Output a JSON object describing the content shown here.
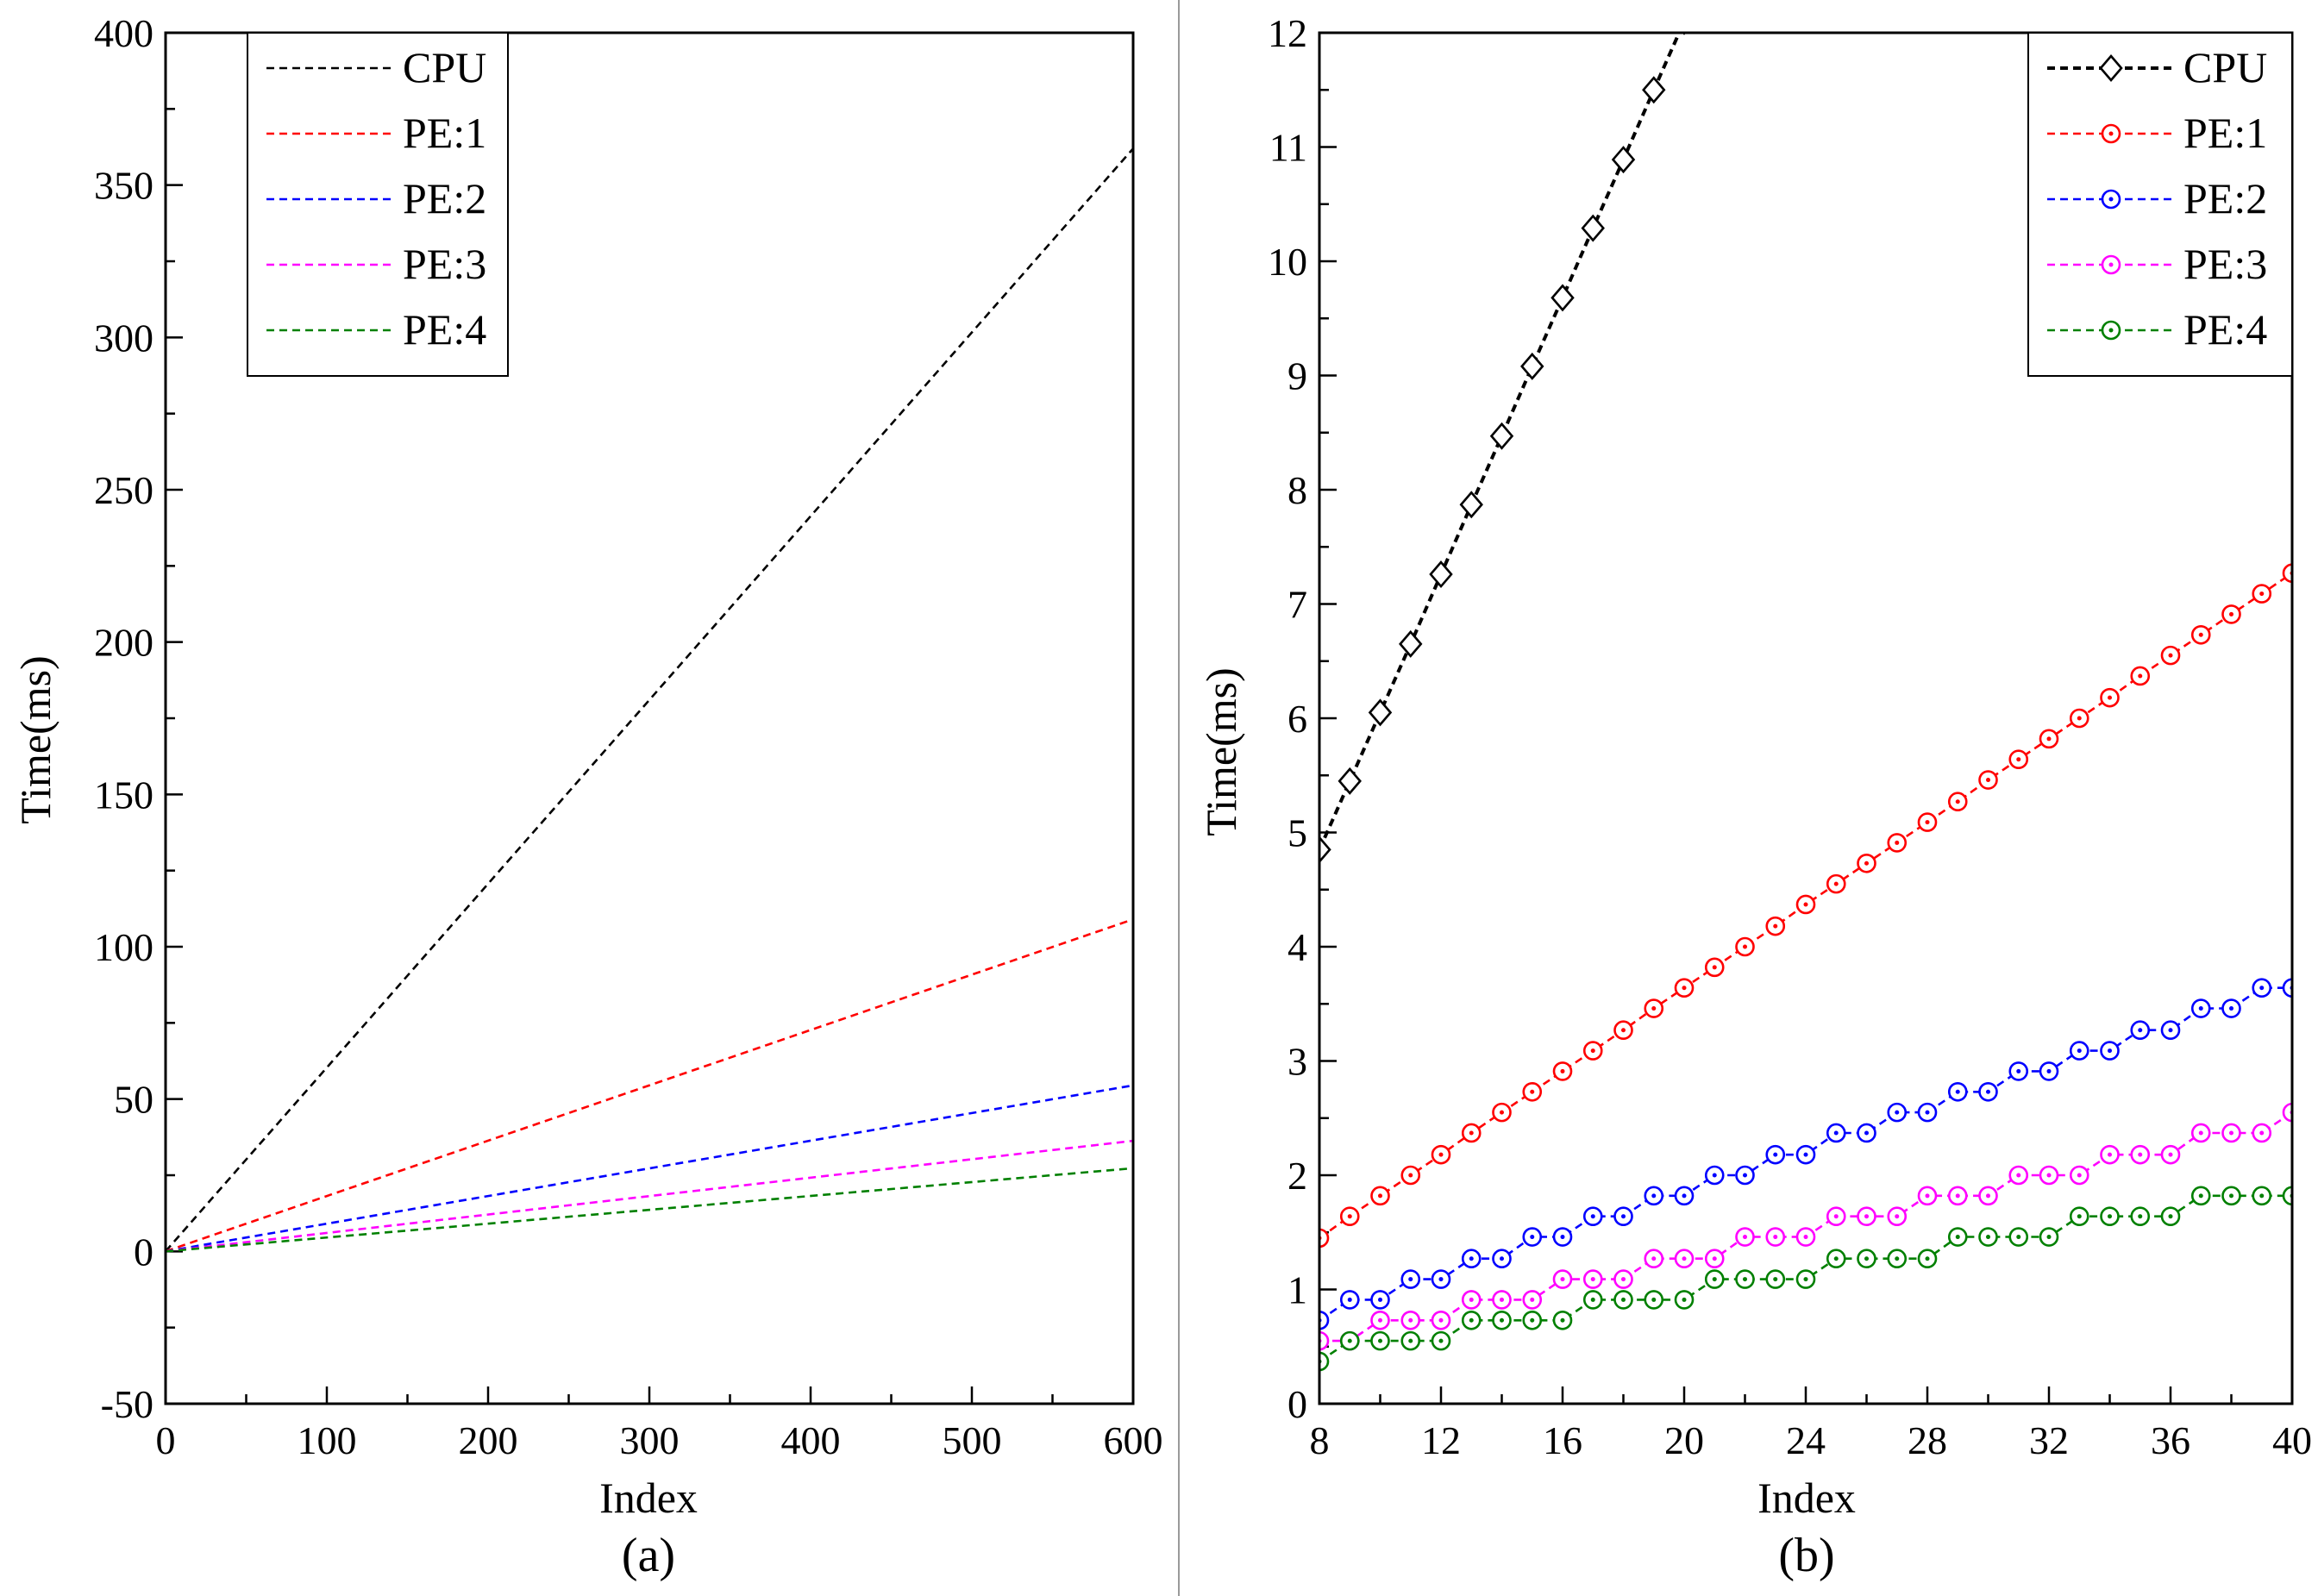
{
  "chart_data": [
    {
      "type": "line",
      "panel_label": "(a)",
      "xlabel": "Index",
      "ylabel": "Time(ms)",
      "xlim": [
        0,
        600
      ],
      "ylim": [
        -50,
        400
      ],
      "xticks": [
        0,
        100,
        200,
        300,
        400,
        500,
        600
      ],
      "yticks": [
        -50,
        0,
        50,
        100,
        150,
        200,
        250,
        300,
        350,
        400
      ],
      "legend": "top-left",
      "series": [
        {
          "name": "CPU",
          "color": "#000000",
          "x": [
            0,
            600
          ],
          "values": [
            0,
            362
          ]
        },
        {
          "name": "PE:1",
          "color": "#ff0000",
          "x": [
            0,
            600
          ],
          "values": [
            0,
            109
          ]
        },
        {
          "name": "PE:2",
          "color": "#0000ff",
          "x": [
            0,
            600
          ],
          "values": [
            0,
            54.5
          ]
        },
        {
          "name": "PE:3",
          "color": "#ff00ff",
          "x": [
            0,
            600
          ],
          "values": [
            0,
            36.3
          ]
        },
        {
          "name": "PE:4",
          "color": "#008000",
          "x": [
            0,
            600
          ],
          "values": [
            0,
            27.3
          ]
        }
      ]
    },
    {
      "type": "line",
      "panel_label": "(b)",
      "xlabel": "Index",
      "ylabel": "Time(ms)",
      "xlim": [
        8,
        40
      ],
      "ylim": [
        0,
        12
      ],
      "xticks": [
        8,
        12,
        16,
        20,
        24,
        28,
        32,
        36,
        40
      ],
      "yticks": [
        0,
        1,
        2,
        3,
        4,
        5,
        6,
        7,
        8,
        9,
        10,
        11,
        12
      ],
      "legend": "top-right",
      "series": [
        {
          "name": "CPU",
          "color": "#000000",
          "marker": "diamond",
          "x": [
            8,
            9,
            10,
            11,
            12,
            13,
            14,
            15,
            16,
            17,
            18,
            19,
            20
          ],
          "values": [
            4.85,
            5.45,
            6.05,
            6.65,
            7.26,
            7.87,
            8.47,
            9.08,
            9.68,
            10.29,
            10.89,
            11.5,
            12.1
          ]
        },
        {
          "name": "PE:1",
          "color": "#ff0000",
          "marker": "circle",
          "x": [
            8,
            9,
            10,
            11,
            12,
            13,
            14,
            15,
            16,
            17,
            18,
            19,
            20,
            21,
            22,
            23,
            24,
            25,
            26,
            27,
            28,
            29,
            30,
            31,
            32,
            33,
            34,
            35,
            36,
            37,
            38,
            39,
            40
          ],
          "values": [
            1.45,
            1.64,
            1.82,
            2.0,
            2.18,
            2.37,
            2.55,
            2.73,
            2.91,
            3.09,
            3.27,
            3.46,
            3.64,
            3.82,
            4.0,
            4.18,
            4.37,
            4.55,
            4.73,
            4.91,
            5.09,
            5.27,
            5.46,
            5.64,
            5.82,
            6.0,
            6.18,
            6.37,
            6.55,
            6.73,
            6.91,
            7.09,
            7.27
          ]
        },
        {
          "name": "PE:2",
          "color": "#0000ff",
          "marker": "circle",
          "x": [
            8,
            9,
            10,
            11,
            12,
            13,
            14,
            15,
            16,
            17,
            18,
            19,
            20,
            21,
            22,
            23,
            24,
            25,
            26,
            27,
            28,
            29,
            30,
            31,
            32,
            33,
            34,
            35,
            36,
            37,
            38,
            39,
            40
          ],
          "values": [
            0.73,
            0.91,
            0.91,
            1.09,
            1.09,
            1.27,
            1.27,
            1.46,
            1.46,
            1.64,
            1.64,
            1.82,
            1.82,
            2.0,
            2.0,
            2.18,
            2.18,
            2.37,
            2.37,
            2.55,
            2.55,
            2.73,
            2.73,
            2.91,
            2.91,
            3.09,
            3.09,
            3.27,
            3.27,
            3.46,
            3.46,
            3.64,
            3.64
          ]
        },
        {
          "name": "PE:3",
          "color": "#ff00ff",
          "marker": "circle",
          "x": [
            8,
            9,
            10,
            11,
            12,
            13,
            14,
            15,
            16,
            17,
            18,
            19,
            20,
            21,
            22,
            23,
            24,
            25,
            26,
            27,
            28,
            29,
            30,
            31,
            32,
            33,
            34,
            35,
            36,
            37,
            38,
            39,
            40
          ],
          "values": [
            0.55,
            0.55,
            0.73,
            0.73,
            0.73,
            0.91,
            0.91,
            0.91,
            1.09,
            1.09,
            1.09,
            1.27,
            1.27,
            1.27,
            1.46,
            1.46,
            1.46,
            1.64,
            1.64,
            1.64,
            1.82,
            1.82,
            1.82,
            2.0,
            2.0,
            2.0,
            2.18,
            2.18,
            2.18,
            2.37,
            2.37,
            2.37,
            2.55
          ]
        },
        {
          "name": "PE:4",
          "color": "#008000",
          "marker": "circle",
          "x": [
            8,
            9,
            10,
            11,
            12,
            13,
            14,
            15,
            16,
            17,
            18,
            19,
            20,
            21,
            22,
            23,
            24,
            25,
            26,
            27,
            28,
            29,
            30,
            31,
            32,
            33,
            34,
            35,
            36,
            37,
            38,
            39,
            40
          ],
          "values": [
            0.37,
            0.55,
            0.55,
            0.55,
            0.55,
            0.73,
            0.73,
            0.73,
            0.73,
            0.91,
            0.91,
            0.91,
            0.91,
            1.09,
            1.09,
            1.09,
            1.09,
            1.27,
            1.27,
            1.27,
            1.27,
            1.46,
            1.46,
            1.46,
            1.46,
            1.64,
            1.64,
            1.64,
            1.64,
            1.82,
            1.82,
            1.82,
            1.82
          ]
        }
      ]
    }
  ]
}
